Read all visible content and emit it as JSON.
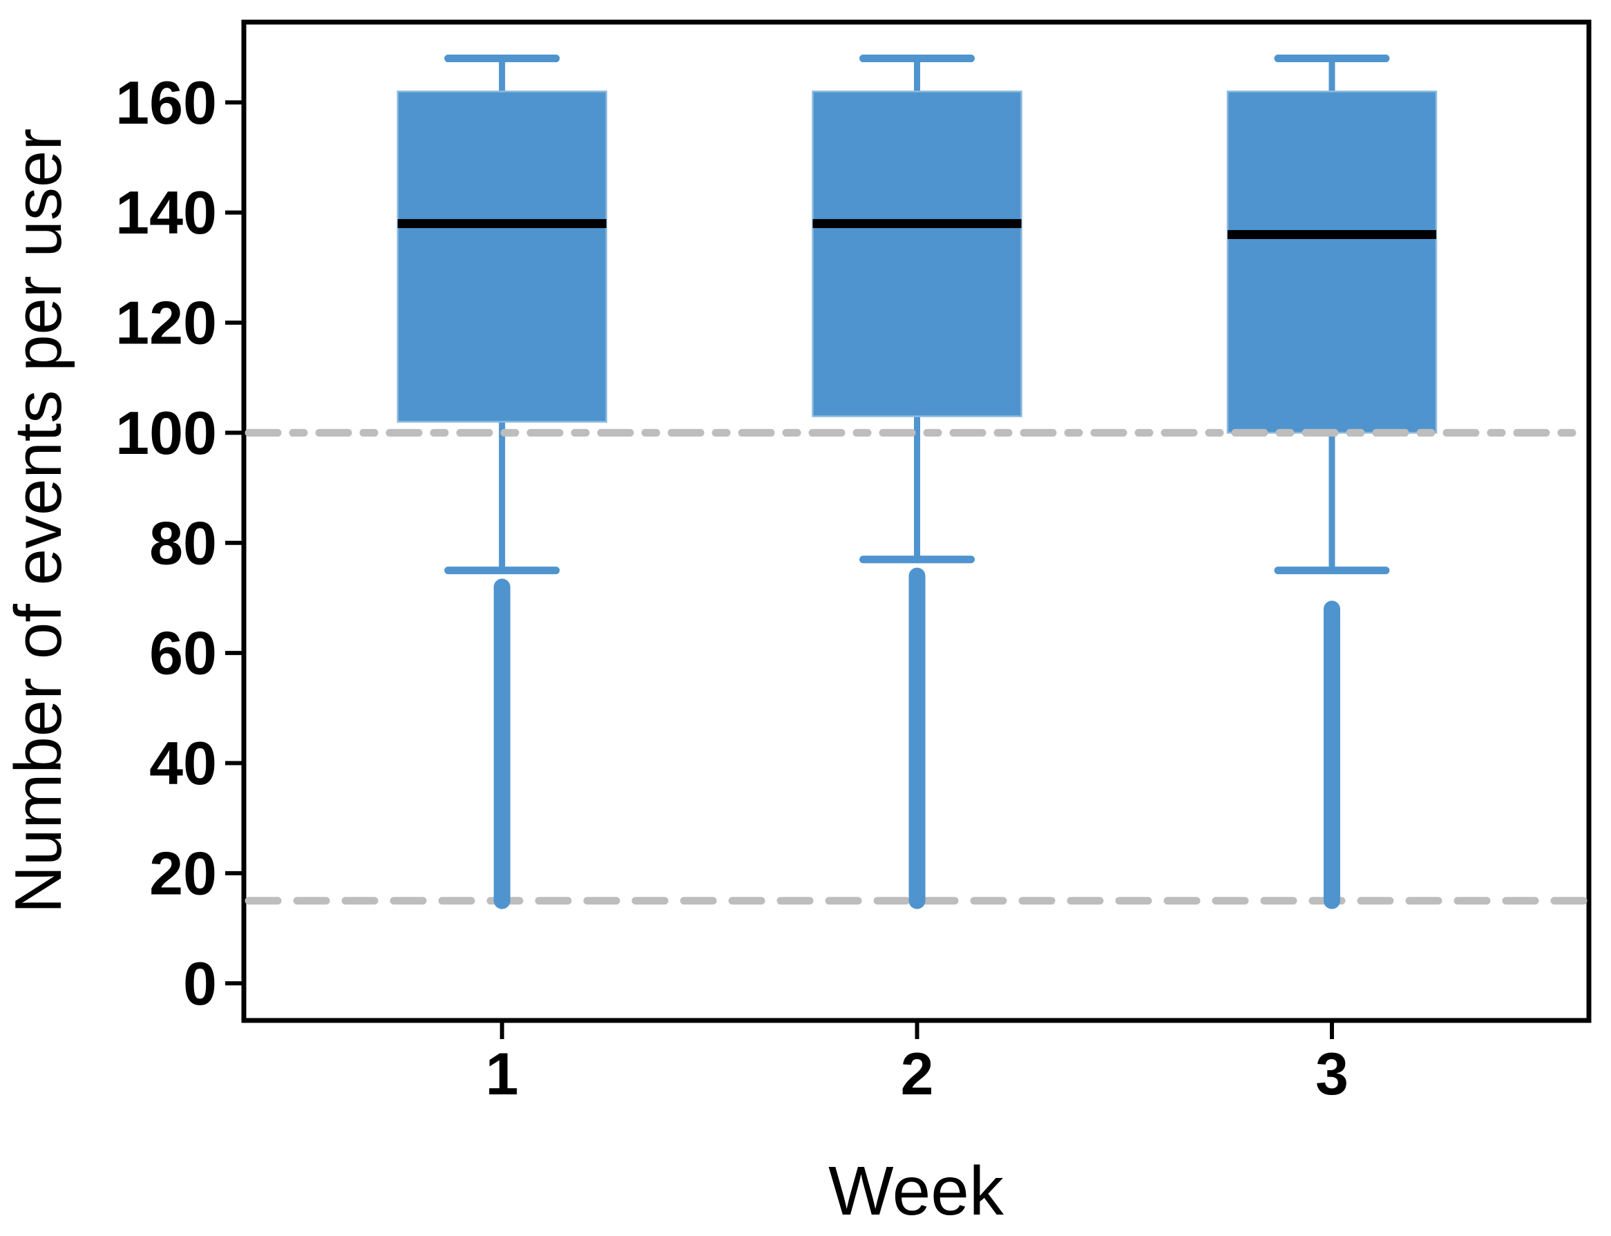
{
  "figure": {
    "background": "#ffffff"
  },
  "chart_data": {
    "type": "boxplot",
    "xlabel": "Week",
    "ylabel": "Number of events per user",
    "categories": [
      "1",
      "2",
      "3"
    ],
    "y_ticks": [
      0,
      20,
      40,
      60,
      80,
      100,
      120,
      140,
      160
    ],
    "ylim": [
      -7,
      175
    ],
    "grid": "off",
    "legend_position": "none",
    "boxes": [
      {
        "category": "1",
        "whisker_high": 168,
        "q3": 162,
        "median": 138,
        "q1": 102,
        "whisker_low": 75,
        "outlier_column_max": 72,
        "outlier_column_min": 15
      },
      {
        "category": "2",
        "whisker_high": 168,
        "q3": 162,
        "median": 138,
        "q1": 103,
        "whisker_low": 77,
        "outlier_column_max": 74,
        "outlier_column_min": 15
      },
      {
        "category": "3",
        "whisker_high": 168,
        "q3": 162,
        "median": 136,
        "q1": 100,
        "whisker_low": 75,
        "outlier_column_max": 68,
        "outlier_column_min": 15
      }
    ],
    "reference_lines": [
      {
        "y": 100,
        "style": "dash-dot",
        "color": "#bdbdbd"
      },
      {
        "y": 15,
        "style": "dashed",
        "color": "#bdbdbd"
      }
    ],
    "colors": {
      "box_fill": "#4F94CE",
      "box_edge": "#8FBADE",
      "median_line": "#000000",
      "whisker": "#4F94CE",
      "outliers": "#4F94CE",
      "axis": "#000000",
      "reference_line": "#bdbdbd"
    }
  }
}
